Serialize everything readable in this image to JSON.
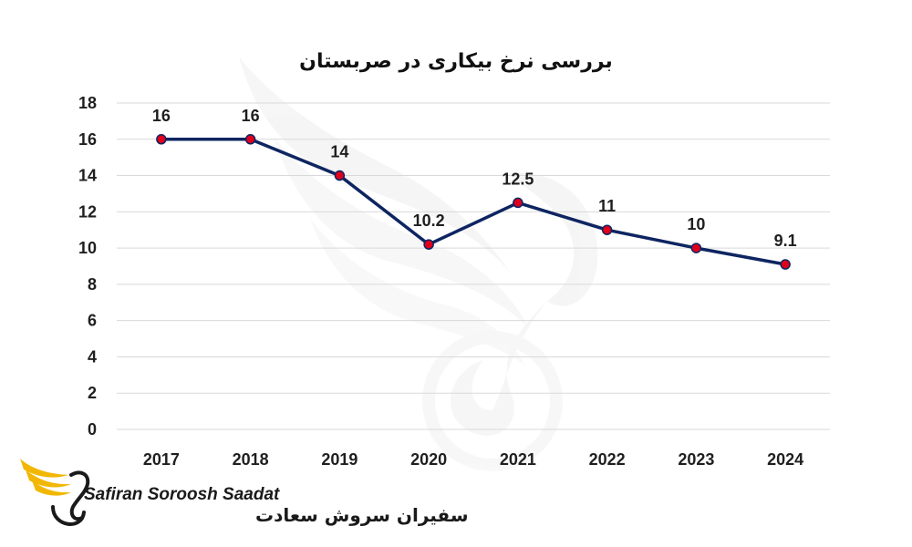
{
  "chart_data": {
    "type": "line",
    "title": "بررسی نرخ بیکاری در صربستان",
    "categories": [
      "2017",
      "2018",
      "2019",
      "2020",
      "2021",
      "2022",
      "2023",
      "2024"
    ],
    "series": [
      {
        "values": [
          16,
          16,
          14,
          10.2,
          12.5,
          11,
          10,
          9.1
        ],
        "labels": [
          "16",
          "16",
          "14",
          "10.2",
          "12.5",
          "11",
          "10",
          "9.1"
        ]
      }
    ],
    "ylim": [
      0,
      18
    ],
    "yticks": [
      "0",
      "2",
      "4",
      "6",
      "8",
      "10",
      "12",
      "14",
      "16",
      "18"
    ],
    "grid": true,
    "xlabel": "",
    "ylabel": "",
    "colors": {
      "line": "#0e2561",
      "marker_fill": "#e0001b",
      "marker_stroke": "#0e2561",
      "grid": "#d9d9d9"
    }
  },
  "logo": {
    "english_text": "Safiran Soroosh Saadat",
    "persian_text": "سفیران سروش سعادت",
    "icon": "wing-swan-logo-icon",
    "colors": {
      "wing": "#f2b705",
      "swan": "#1a1a1a"
    }
  },
  "watermark": {
    "icon": "wing-swan-watermark-icon"
  }
}
